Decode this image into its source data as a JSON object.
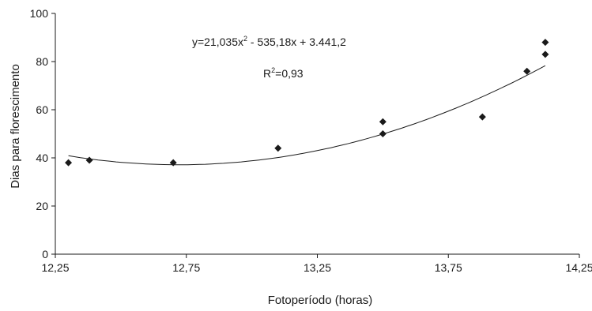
{
  "chart_data": {
    "type": "scatter",
    "xlabel": "Fotoperíodo  (horas)",
    "ylabel": "Dias para florescimento",
    "xlim": [
      12.25,
      14.25
    ],
    "ylim": [
      0,
      100
    ],
    "x_ticks": [
      "12,25",
      "12,75",
      "13,25",
      "13,75",
      "14,25"
    ],
    "y_ticks": [
      "0",
      "20",
      "40",
      "60",
      "80",
      "100"
    ],
    "points": [
      {
        "x": 12.3,
        "y": 38
      },
      {
        "x": 12.38,
        "y": 39
      },
      {
        "x": 12.7,
        "y": 38
      },
      {
        "x": 13.1,
        "y": 44
      },
      {
        "x": 13.5,
        "y": 55
      },
      {
        "x": 13.5,
        "y": 50
      },
      {
        "x": 13.88,
        "y": 57
      },
      {
        "x": 14.05,
        "y": 76
      },
      {
        "x": 14.12,
        "y": 83
      },
      {
        "x": 14.12,
        "y": 88
      }
    ],
    "trendline": {
      "type": "polynomial-2",
      "coefficients": {
        "a": 21.035,
        "b": -535.18,
        "c": 3441.2
      },
      "x_range": [
        12.3,
        14.12
      ]
    },
    "annotations": {
      "equation_pre": "y=21,035x",
      "equation_sup": "2",
      "equation_post": " - 535,18x + 3.441,2",
      "r2_pre": "R",
      "r2_sup": "2",
      "r2_post": "=0,93"
    },
    "grid": false,
    "legend": "none",
    "colors": {
      "marker": "#1a1a1a",
      "line": "#1a1a1a",
      "axis": "#1a1a1a"
    }
  }
}
